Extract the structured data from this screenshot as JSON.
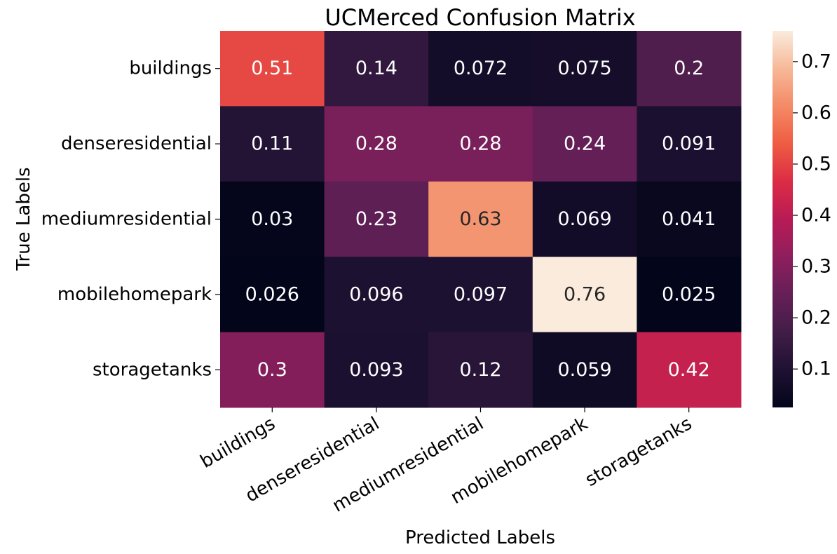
{
  "chart_data": {
    "type": "heatmap",
    "title": "UCMerced Confusion Matrix",
    "xlabel": "Predicted Labels",
    "ylabel": "True Labels",
    "x_categories": [
      "buildings",
      "denseresidential",
      "mediumresidential",
      "mobilehomepark",
      "storagetanks"
    ],
    "y_categories": [
      "buildings",
      "denseresidential",
      "mediumresidential",
      "mobilehomepark",
      "storagetanks"
    ],
    "values": [
      [
        0.51,
        0.14,
        0.072,
        0.075,
        0.2
      ],
      [
        0.11,
        0.28,
        0.28,
        0.24,
        0.091
      ],
      [
        0.03,
        0.23,
        0.63,
        0.069,
        0.041
      ],
      [
        0.026,
        0.096,
        0.097,
        0.76,
        0.025
      ],
      [
        0.3,
        0.093,
        0.12,
        0.059,
        0.42
      ]
    ],
    "cell_labels": [
      [
        "0.51",
        "0.14",
        "0.072",
        "0.075",
        "0.2"
      ],
      [
        "0.11",
        "0.28",
        "0.28",
        "0.24",
        "0.091"
      ],
      [
        "0.03",
        "0.23",
        "0.63",
        "0.069",
        "0.041"
      ],
      [
        "0.026",
        "0.096",
        "0.097",
        "0.76",
        "0.025"
      ],
      [
        "0.3",
        "0.093",
        "0.12",
        "0.059",
        "0.42"
      ]
    ],
    "colormap": "rocket",
    "colorbar": {
      "min": 0.025,
      "max": 0.76,
      "ticks": [
        0.1,
        0.2,
        0.3,
        0.4,
        0.5,
        0.6,
        0.7
      ],
      "tick_labels": [
        "0.1",
        "0.2",
        "0.3",
        "0.4",
        "0.5",
        "0.6",
        "0.7"
      ]
    },
    "grid": false,
    "legend": "colorbar-right"
  }
}
